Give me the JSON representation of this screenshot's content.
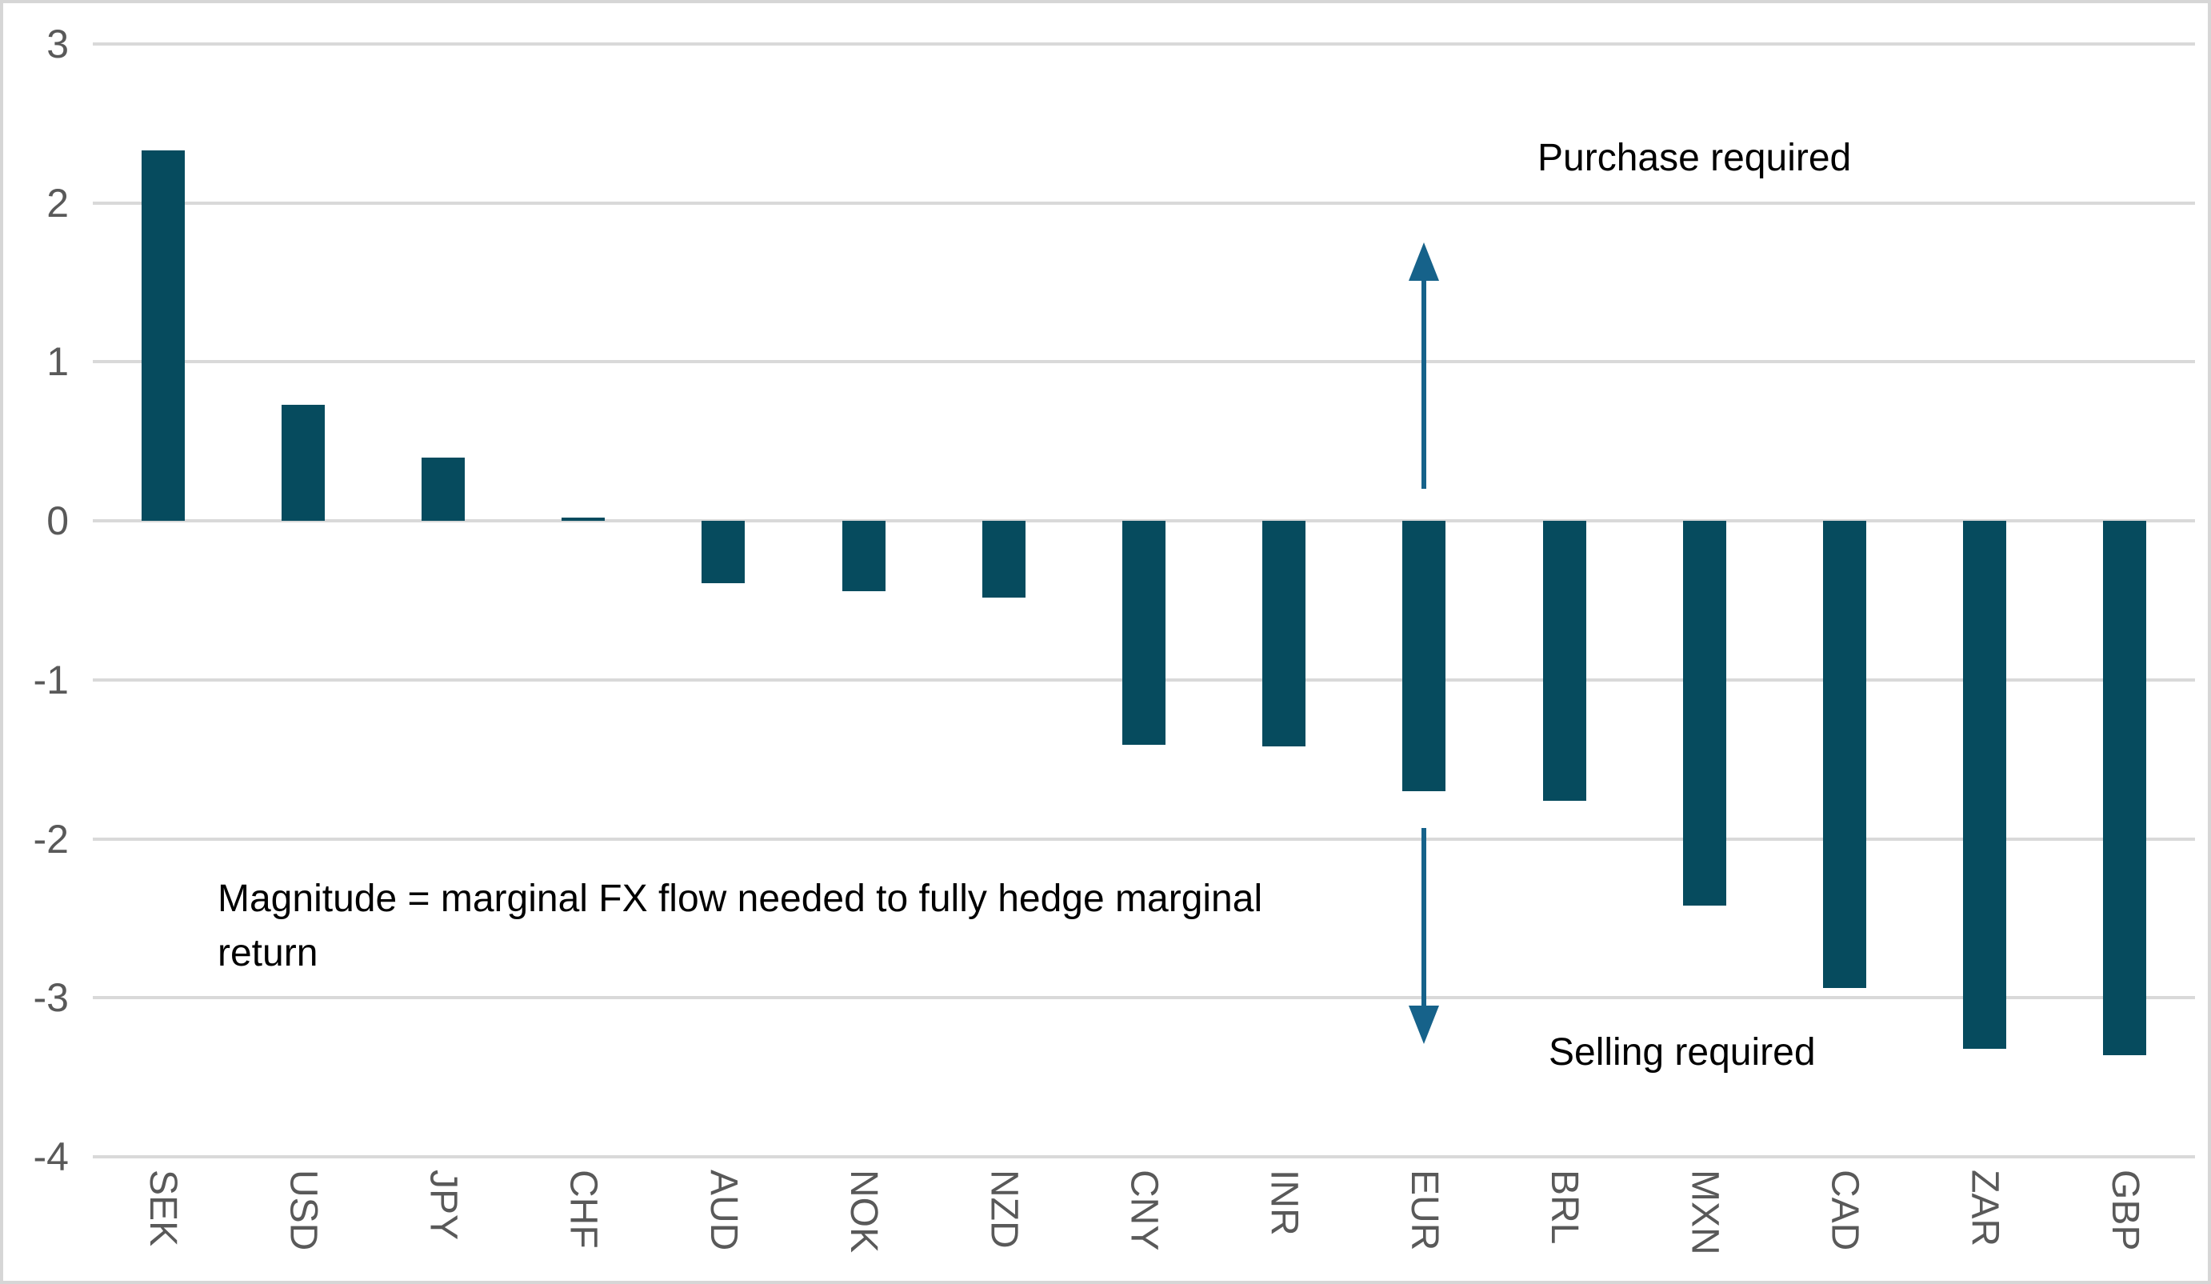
{
  "chart_data": {
    "type": "bar",
    "categories": [
      "SEK",
      "USD",
      "JPY",
      "CHF",
      "AUD",
      "NOK",
      "NZD",
      "CNY",
      "INR",
      "EUR",
      "BRL",
      "MXN",
      "CAD",
      "ZAR",
      "GBP"
    ],
    "values": [
      2.33,
      0.73,
      0.4,
      0.02,
      -0.39,
      -0.44,
      -0.48,
      -1.41,
      -1.42,
      -1.7,
      -1.76,
      -2.42,
      -2.94,
      -3.32,
      -3.36
    ],
    "title": "",
    "xlabel": "",
    "ylabel": "",
    "ylim": [
      -4,
      3
    ],
    "yticks": [
      3,
      2,
      1,
      0,
      -1,
      -2,
      -3,
      -4
    ],
    "ytick_labels": [
      "3",
      "2",
      "1",
      "0",
      "-1",
      "-2",
      "-3",
      "-4"
    ],
    "grid": true,
    "legend": "none",
    "bar_color": "#064b5e",
    "arrows": [
      {
        "id": "purchase-up-arrow",
        "direction": "up",
        "x_category": "EUR",
        "value_start": 0.2,
        "value_end": 1.75
      },
      {
        "id": "selling-down-arrow",
        "direction": "down",
        "x_category": "EUR",
        "value_start": -1.93,
        "value_end": -3.29
      }
    ]
  },
  "annotations": {
    "purchase": "Purchase required",
    "selling": "Selling required",
    "magnitude": "Magnitude = marginal FX flow needed to fully hedge marginal return"
  },
  "colors": {
    "bar": "#064b5e",
    "arrow": "#16628a",
    "gridline": "#d9d9d9",
    "border": "#d6d6d6",
    "tick_text": "#595959",
    "annotation_text": "#000000",
    "background": "#ffffff"
  }
}
